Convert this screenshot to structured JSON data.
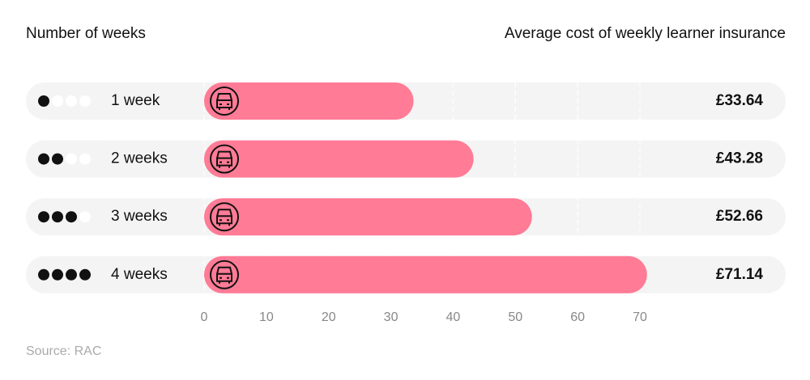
{
  "chart_data": {
    "type": "bar",
    "orientation": "horizontal",
    "title": "Number of weeks",
    "subtitle": "Average cost of weekly learner insurance",
    "source": "Source: RAC",
    "categories": [
      "1 week",
      "2 weeks",
      "3 weeks",
      "4 weeks"
    ],
    "values": [
      33.64,
      43.28,
      52.66,
      71.14
    ],
    "value_labels": [
      "£33.64",
      "£43.28",
      "£52.66",
      "£71.14"
    ],
    "color": "#ff7b96",
    "xlim": [
      0,
      70
    ],
    "xticks": [
      0,
      10,
      20,
      30,
      40,
      50,
      60,
      70
    ],
    "grid": true
  }
}
